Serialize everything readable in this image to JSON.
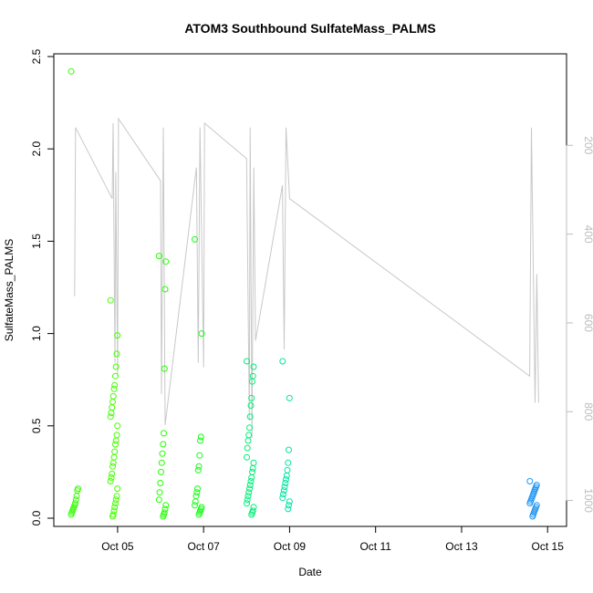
{
  "chart_data": {
    "type": "scatter",
    "title": "ATOM3 Southbound SulfateMass_PALMS",
    "xlabel": "Date",
    "ylabel": "SulfateMass_PALMS",
    "xlim": [
      "2017-10-03T18:00",
      "2017-10-15T06:00"
    ],
    "ylim": [
      0,
      2.5
    ],
    "x_ticks": [
      {
        "date": "2017-10-05",
        "label": "Oct 05"
      },
      {
        "date": "2017-10-07",
        "label": "Oct 07"
      },
      {
        "date": "2017-10-09",
        "label": "Oct 09"
      },
      {
        "date": "2017-10-11",
        "label": "Oct 11"
      },
      {
        "date": "2017-10-13",
        "label": "Oct 13"
      },
      {
        "date": "2017-10-15",
        "label": "Oct 15"
      }
    ],
    "y_ticks": [
      "0.0",
      "0.5",
      "1.0",
      "1.5",
      "2.0",
      "2.5"
    ],
    "y_right_axis": {
      "reversed": true,
      "range": [
        0,
        1040
      ],
      "ticks": [
        "200",
        "400",
        "600",
        "800",
        "1000"
      ],
      "color": "#bdbdbd"
    },
    "grid": false,
    "series": [
      {
        "kind": "points",
        "marker": "open-circle",
        "clusters": [
          {
            "date": "2017-10-04T00:00",
            "color": "#33ff00",
            "values": [
              2.42,
              0.16,
              0.15,
              0.12,
              0.1,
              0.08,
              0.07,
              0.06,
              0.05,
              0.04,
              0.03,
              0.02
            ]
          },
          {
            "date": "2017-10-04T22:00",
            "color": "#44ff00",
            "values": [
              1.18,
              0.99,
              0.89,
              0.82,
              0.77,
              0.72,
              0.7,
              0.66,
              0.63,
              0.6,
              0.57,
              0.55,
              0.5,
              0.45,
              0.42,
              0.4,
              0.36,
              0.33,
              0.3,
              0.28,
              0.24,
              0.22,
              0.2,
              0.16,
              0.12,
              0.1,
              0.08,
              0.06,
              0.04,
              0.02,
              0.01
            ]
          },
          {
            "date": "2017-10-06T01:00",
            "color": "#22ff00",
            "values": [
              1.42,
              1.39,
              1.24,
              0.81,
              0.46,
              0.4,
              0.35,
              0.3,
              0.25,
              0.19,
              0.14,
              0.1,
              0.07,
              0.05,
              0.03,
              0.02,
              0.01
            ]
          },
          {
            "date": "2017-10-06T21:00",
            "color": "#11ff11",
            "values": [
              1.51,
              1.0,
              0.44,
              0.42,
              0.34,
              0.28,
              0.26,
              0.16,
              0.14,
              0.12,
              0.09,
              0.07,
              0.06,
              0.05,
              0.04,
              0.03,
              0.02
            ]
          },
          {
            "date": "2017-10-08T02:00",
            "color": "#00ee77",
            "values": [
              0.85,
              0.82,
              0.77,
              0.74,
              0.65,
              0.61,
              0.55,
              0.49,
              0.45,
              0.42,
              0.38,
              0.33,
              0.3,
              0.27,
              0.25,
              0.22,
              0.2,
              0.18,
              0.16,
              0.14,
              0.12,
              0.1,
              0.08,
              0.06,
              0.04,
              0.03,
              0.02
            ]
          },
          {
            "date": "2017-10-08T22:00",
            "color": "#00e6a0",
            "values": [
              0.85,
              0.65,
              0.37,
              0.3,
              0.26,
              0.23,
              0.21,
              0.19,
              0.17,
              0.15,
              0.13,
              0.11,
              0.09,
              0.07,
              0.05
            ]
          },
          {
            "date": "2017-10-14T16:00",
            "color": "#2196f3",
            "values": [
              0.2,
              0.18,
              0.17,
              0.16,
              0.15,
              0.14,
              0.13,
              0.12,
              0.11,
              0.1,
              0.09,
              0.08,
              0.07,
              0.06,
              0.05,
              0.04,
              0.03,
              0.02,
              0.01
            ]
          }
        ]
      },
      {
        "kind": "line",
        "axis": "right",
        "color": "#c8c8c8",
        "points": [
          [
            "2017-10-04T00:00",
            540
          ],
          [
            "2017-10-04T00:30",
            160
          ],
          [
            "2017-10-04T21:00",
            320
          ],
          [
            "2017-10-04T21:30",
            150
          ],
          [
            "2017-10-04T22:30",
            690
          ],
          [
            "2017-10-04T23:00",
            260
          ],
          [
            "2017-10-05T00:00",
            720
          ],
          [
            "2017-10-05T00:30",
            140
          ],
          [
            "2017-10-06T00:00",
            280
          ],
          [
            "2017-10-06T00:30",
            760
          ],
          [
            "2017-10-06T01:30",
            160
          ],
          [
            "2017-10-06T02:30",
            830
          ],
          [
            "2017-10-06T20:00",
            250
          ],
          [
            "2017-10-06T21:00",
            690
          ],
          [
            "2017-10-06T22:00",
            160
          ],
          [
            "2017-10-07T00:00",
            700
          ],
          [
            "2017-10-07T00:30",
            150
          ],
          [
            "2017-10-08T00:00",
            230
          ],
          [
            "2017-10-08T01:30",
            820
          ],
          [
            "2017-10-08T02:00",
            160
          ],
          [
            "2017-10-08T03:00",
            860
          ],
          [
            "2017-10-08T04:00",
            250
          ],
          [
            "2017-10-08T05:00",
            640
          ],
          [
            "2017-10-08T20:00",
            290
          ],
          [
            "2017-10-08T21:00",
            660
          ],
          [
            "2017-10-08T22:00",
            160
          ],
          [
            "2017-10-09T00:00",
            320
          ],
          [
            "2017-10-14T14:00",
            720
          ],
          [
            "2017-10-14T15:00",
            160
          ],
          [
            "2017-10-14T17:00",
            780
          ],
          [
            "2017-10-14T18:00",
            490
          ],
          [
            "2017-10-14T19:00",
            780
          ]
        ]
      }
    ]
  }
}
